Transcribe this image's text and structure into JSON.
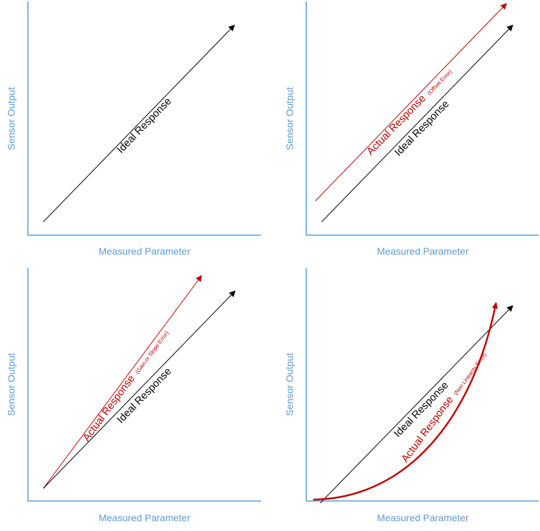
{
  "colors": {
    "axis": "#5b9bd5",
    "ideal": "#000000",
    "actual": "#c00000"
  },
  "panels": [
    {
      "x_axis_label": "Measured Parameter",
      "y_axis_label": "Sensor Output",
      "ideal_label": "Ideal Response"
    },
    {
      "x_axis_label": "Measured Parameter",
      "y_axis_label": "Sensor Output",
      "ideal_label": "Ideal Response",
      "actual_label": "Actual Response",
      "actual_note": "(Offset Error)"
    },
    {
      "x_axis_label": "Measured Parameter",
      "y_axis_label": "Sensor Output",
      "ideal_label": "Ideal Response",
      "actual_label": "Actual Response",
      "actual_note": "(Gain or Slope Error)"
    },
    {
      "x_axis_label": "Measured Parameter",
      "y_axis_label": "Sensor Output",
      "ideal_label": "Ideal Response",
      "actual_label": "Actual Response",
      "actual_note": "(Non Linearity Error)"
    }
  ]
}
